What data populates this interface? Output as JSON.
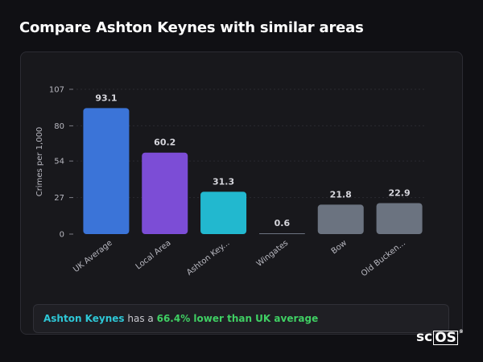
{
  "page": {
    "title": "Compare Ashton Keynes with similar areas"
  },
  "summary": {
    "place": "Ashton Keynes",
    "connector": "has a",
    "difference": "66.4% lower than UK average"
  },
  "logo": {
    "text_plain": "sc",
    "text_boxed": "OS",
    "mark": "®"
  },
  "chart_data": {
    "type": "bar",
    "ylabel": "Crimes per 1,000",
    "xlabel": "",
    "ylim": [
      0,
      107
    ],
    "yticks": [
      0,
      27,
      54,
      80,
      107
    ],
    "grid": true,
    "categories": [
      "UK Average",
      "Local Area",
      "Ashton Key...",
      "Wingates",
      "Bow",
      "Old Bucken..."
    ],
    "values": [
      93.1,
      60.2,
      31.3,
      0.6,
      21.8,
      22.9
    ],
    "value_labels": [
      "93.1",
      "60.2",
      "31.3",
      "0.6",
      "21.8",
      "22.9"
    ],
    "colors": [
      "#3b74d8",
      "#7c4dd6",
      "#22b8cf",
      "#6b7380",
      "#6b7380",
      "#6b7380"
    ]
  }
}
